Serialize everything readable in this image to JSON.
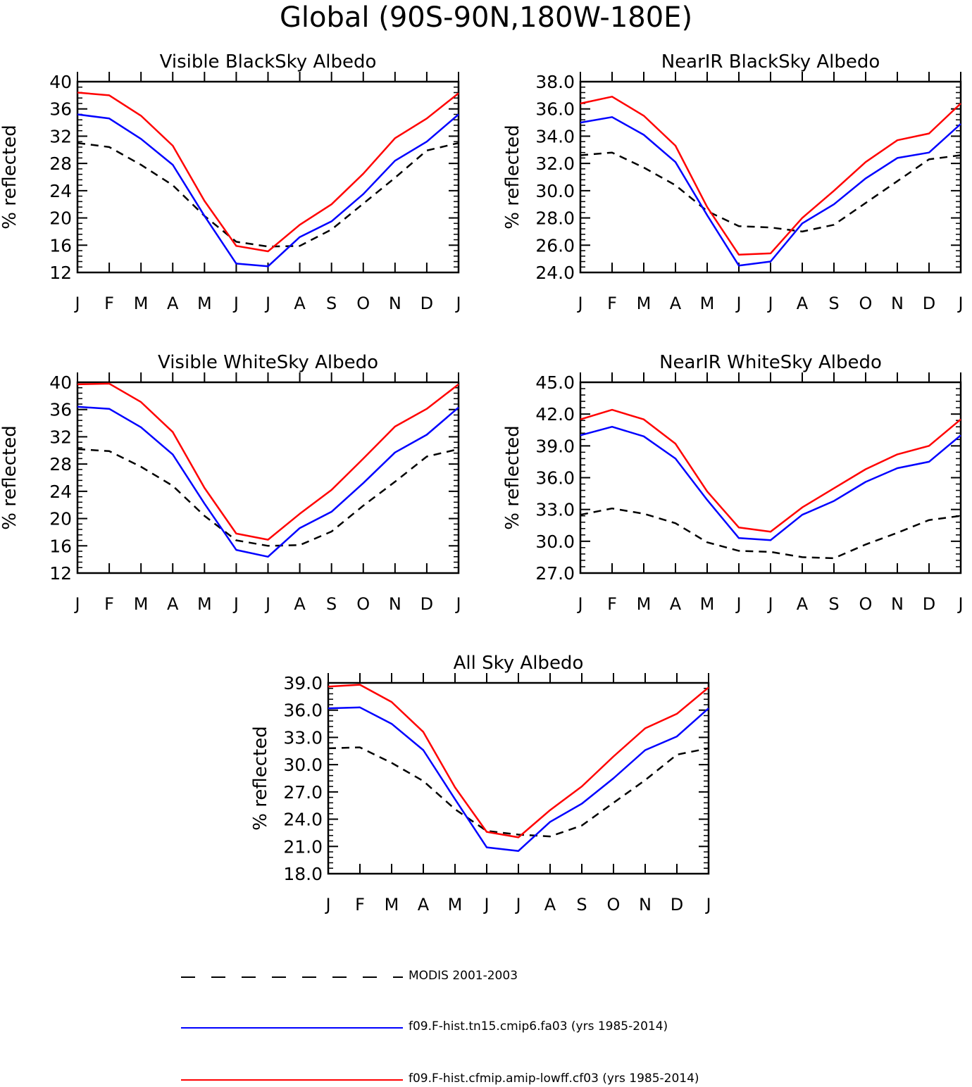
{
  "page": {
    "title": "Global (90S-90N,180W-180E)"
  },
  "chart_data": [
    {
      "type": "line",
      "title": "Visible BlackSky Albedo",
      "ylabel": "% reflected",
      "xlabel": "",
      "categories": [
        "J",
        "F",
        "M",
        "A",
        "M",
        "J",
        "J",
        "A",
        "S",
        "O",
        "N",
        "D",
        "J"
      ],
      "ylim": [
        12,
        40
      ],
      "yticks": [
        "12",
        "16",
        "20",
        "24",
        "28",
        "32",
        "36",
        "40"
      ],
      "series": [
        {
          "legend_index": 0,
          "color": "#000000",
          "dash": true,
          "values": [
            31.0,
            30.4,
            27.8,
            24.8,
            20.3,
            16.5,
            15.8,
            15.9,
            18.3,
            22.1,
            25.9,
            29.9,
            31.0
          ]
        },
        {
          "legend_index": 1,
          "color": "#0000ff",
          "dash": false,
          "values": [
            35.2,
            34.6,
            31.6,
            27.8,
            20.3,
            13.3,
            12.9,
            17.2,
            19.5,
            23.5,
            28.4,
            31.2,
            35.2
          ]
        },
        {
          "legend_index": 2,
          "color": "#ff0000",
          "dash": false,
          "values": [
            38.4,
            38.0,
            35.0,
            30.6,
            22.5,
            15.9,
            15.1,
            19.0,
            22.0,
            26.5,
            31.7,
            34.6,
            38.3
          ]
        }
      ]
    },
    {
      "type": "line",
      "title": "NearIR BlackSky Albedo",
      "ylabel": "% reflected",
      "xlabel": "",
      "categories": [
        "J",
        "F",
        "M",
        "A",
        "M",
        "J",
        "J",
        "A",
        "S",
        "O",
        "N",
        "D",
        "J"
      ],
      "ylim": [
        24,
        38
      ],
      "yticks": [
        "24.0",
        "26.0",
        "28.0",
        "30.0",
        "32.0",
        "34.0",
        "36.0",
        "38.0"
      ],
      "series": [
        {
          "legend_index": 0,
          "color": "#000000",
          "dash": true,
          "values": [
            32.6,
            32.8,
            31.7,
            30.4,
            28.5,
            27.4,
            27.3,
            27.0,
            27.5,
            29.1,
            30.7,
            32.3,
            32.6
          ]
        },
        {
          "legend_index": 1,
          "color": "#0000ff",
          "dash": false,
          "values": [
            35.0,
            35.4,
            34.1,
            32.1,
            28.2,
            24.5,
            24.8,
            27.6,
            29.0,
            30.9,
            32.4,
            32.8,
            34.9
          ]
        },
        {
          "legend_index": 2,
          "color": "#ff0000",
          "dash": false,
          "values": [
            36.4,
            36.9,
            35.5,
            33.3,
            28.8,
            25.3,
            25.4,
            28.0,
            30.0,
            32.1,
            33.7,
            34.2,
            36.4
          ]
        }
      ]
    },
    {
      "type": "line",
      "title": "Visible WhiteSky Albedo",
      "ylabel": "% reflected",
      "xlabel": "",
      "categories": [
        "J",
        "F",
        "M",
        "A",
        "M",
        "J",
        "J",
        "A",
        "S",
        "O",
        "N",
        "D",
        "J"
      ],
      "ylim": [
        12,
        40
      ],
      "yticks": [
        "12",
        "16",
        "20",
        "24",
        "28",
        "32",
        "36",
        "40"
      ],
      "series": [
        {
          "legend_index": 0,
          "color": "#000000",
          "dash": true,
          "values": [
            30.2,
            29.9,
            27.6,
            24.8,
            20.4,
            16.8,
            16.0,
            16.1,
            18.1,
            21.9,
            25.4,
            29.1,
            30.2
          ]
        },
        {
          "legend_index": 1,
          "color": "#0000ff",
          "dash": false,
          "values": [
            36.4,
            36.1,
            33.4,
            29.4,
            22.2,
            15.4,
            14.4,
            18.6,
            21.0,
            25.2,
            29.7,
            32.3,
            36.3
          ]
        },
        {
          "legend_index": 2,
          "color": "#ff0000",
          "dash": false,
          "values": [
            39.7,
            39.8,
            37.1,
            32.7,
            24.5,
            17.8,
            16.9,
            20.7,
            24.2,
            28.8,
            33.5,
            36.1,
            39.7
          ]
        }
      ]
    },
    {
      "type": "line",
      "title": "NearIR WhiteSky Albedo",
      "ylabel": "% reflected",
      "xlabel": "",
      "categories": [
        "J",
        "F",
        "M",
        "A",
        "M",
        "J",
        "J",
        "A",
        "S",
        "O",
        "N",
        "D",
        "J"
      ],
      "ylim": [
        27,
        45
      ],
      "yticks": [
        "27.0",
        "30.0",
        "33.0",
        "36.0",
        "39.0",
        "42.0",
        "45.0"
      ],
      "series": [
        {
          "legend_index": 0,
          "color": "#000000",
          "dash": true,
          "values": [
            32.5,
            33.1,
            32.6,
            31.7,
            29.9,
            29.1,
            29.0,
            28.5,
            28.4,
            29.7,
            30.8,
            32.0,
            32.4
          ]
        },
        {
          "legend_index": 1,
          "color": "#0000ff",
          "dash": false,
          "values": [
            40.0,
            40.8,
            39.9,
            37.8,
            33.9,
            30.3,
            30.1,
            32.5,
            33.8,
            35.6,
            36.9,
            37.5,
            40.0
          ]
        },
        {
          "legend_index": 2,
          "color": "#ff0000",
          "dash": false,
          "values": [
            41.5,
            42.4,
            41.5,
            39.2,
            34.7,
            31.3,
            30.9,
            33.2,
            35.0,
            36.8,
            38.2,
            39.0,
            41.5
          ]
        }
      ]
    },
    {
      "type": "line",
      "title": "All Sky Albedo",
      "ylabel": "% reflected",
      "xlabel": "",
      "categories": [
        "J",
        "F",
        "M",
        "A",
        "M",
        "J",
        "J",
        "A",
        "S",
        "O",
        "N",
        "D",
        "J"
      ],
      "ylim": [
        18,
        39
      ],
      "yticks": [
        "18.0",
        "21.0",
        "24.0",
        "27.0",
        "30.0",
        "33.0",
        "36.0",
        "39.0"
      ],
      "series": [
        {
          "legend_index": 0,
          "color": "#000000",
          "dash": true,
          "values": [
            31.8,
            31.9,
            30.2,
            28.2,
            25.1,
            22.7,
            22.3,
            22.1,
            23.3,
            25.8,
            28.3,
            31.1,
            31.8
          ]
        },
        {
          "legend_index": 1,
          "color": "#0000ff",
          "dash": false,
          "values": [
            36.2,
            36.3,
            34.5,
            31.6,
            26.2,
            20.9,
            20.5,
            23.7,
            25.7,
            28.5,
            31.6,
            33.1,
            36.2
          ]
        },
        {
          "legend_index": 2,
          "color": "#ff0000",
          "dash": false,
          "values": [
            38.6,
            38.8,
            36.9,
            33.6,
            27.5,
            22.6,
            22.0,
            25.0,
            27.6,
            30.9,
            34.0,
            35.6,
            38.5
          ]
        }
      ]
    }
  ],
  "legend": [
    {
      "label": "MODIS 2001-2003",
      "color": "#000000",
      "dash": true
    },
    {
      "label": "f09.F-hist.tn15.cmip6.fa03 (yrs 1985-2014)",
      "color": "#0000ff",
      "dash": false
    },
    {
      "label": "f09.F-hist.cfmip.amip-lowff.cf03 (yrs 1985-2014)",
      "color": "#ff0000",
      "dash": false
    }
  ]
}
